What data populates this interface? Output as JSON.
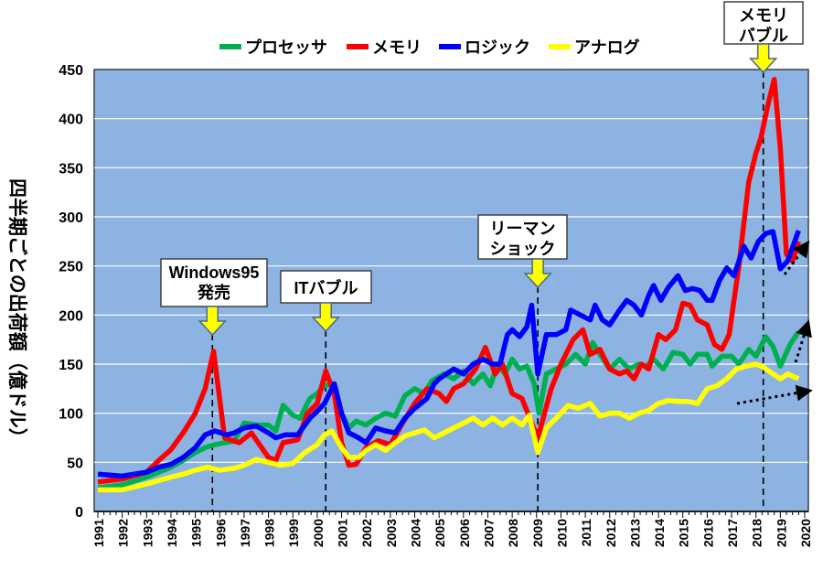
{
  "chart_data": {
    "type": "line",
    "title": "",
    "xlabel": "",
    "ylabel": "四半期ごとの出荷額（億ドル）",
    "ylim": [
      0,
      450
    ],
    "yticks": [
      0,
      50,
      100,
      150,
      200,
      250,
      300,
      350,
      400,
      450
    ],
    "xlim": [
      1991,
      2020
    ],
    "xticks": [
      "1991",
      "1992",
      "1993",
      "1994",
      "1995",
      "1996",
      "1997",
      "1998",
      "1999",
      "2000",
      "2001",
      "2002",
      "2003",
      "2004",
      "2005",
      "2006",
      "2007",
      "2008",
      "2009",
      "2010",
      "2011",
      "2012",
      "2013",
      "2014",
      "2015",
      "2016",
      "2017",
      "2018",
      "2019",
      "2020"
    ],
    "grid": true,
    "legend_position": "top",
    "series": [
      {
        "name": "プロセッサ",
        "color": "#00b050",
        "points": [
          [
            1991,
            24
          ],
          [
            1992,
            27
          ],
          [
            1993,
            35
          ],
          [
            1994,
            45
          ],
          [
            1994.5,
            52
          ],
          [
            1995,
            60
          ],
          [
            1995.4,
            65
          ],
          [
            1995.8,
            68
          ],
          [
            1996.2,
            70
          ],
          [
            1996.6,
            72
          ],
          [
            1997,
            90
          ],
          [
            1997.5,
            88
          ],
          [
            1998,
            88
          ],
          [
            1998.3,
            82
          ],
          [
            1998.6,
            108
          ],
          [
            1999,
            98
          ],
          [
            1999.3,
            95
          ],
          [
            1999.7,
            115
          ],
          [
            2000,
            120
          ],
          [
            2000.3,
            128
          ],
          [
            2000.6,
            130
          ],
          [
            2001,
            100
          ],
          [
            2001.3,
            85
          ],
          [
            2001.6,
            92
          ],
          [
            2002,
            88
          ],
          [
            2002.4,
            95
          ],
          [
            2002.8,
            100
          ],
          [
            2003.2,
            97
          ],
          [
            2003.6,
            118
          ],
          [
            2004,
            125
          ],
          [
            2004.4,
            120
          ],
          [
            2004.7,
            133
          ],
          [
            2005.2,
            140
          ],
          [
            2005.6,
            135
          ],
          [
            2006,
            143
          ],
          [
            2006.4,
            130
          ],
          [
            2006.8,
            140
          ],
          [
            2007.1,
            128
          ],
          [
            2007.4,
            150
          ],
          [
            2007.7,
            140
          ],
          [
            2008,
            155
          ],
          [
            2008.3,
            145
          ],
          [
            2008.6,
            148
          ],
          [
            2008.9,
            130
          ],
          [
            2009.1,
            100
          ],
          [
            2009.4,
            140
          ],
          [
            2009.8,
            145
          ],
          [
            2010.2,
            150
          ],
          [
            2010.6,
            160
          ],
          [
            2011,
            150
          ],
          [
            2011.3,
            172
          ],
          [
            2011.6,
            160
          ],
          [
            2012,
            145
          ],
          [
            2012.4,
            155
          ],
          [
            2012.8,
            145
          ],
          [
            2013.2,
            150
          ],
          [
            2013.5,
            148
          ],
          [
            2013.8,
            155
          ],
          [
            2014.2,
            145
          ],
          [
            2014.6,
            162
          ],
          [
            2015,
            160
          ],
          [
            2015.3,
            150
          ],
          [
            2015.6,
            160
          ],
          [
            2016,
            160
          ],
          [
            2016.2,
            148
          ],
          [
            2016.6,
            158
          ],
          [
            2017,
            158
          ],
          [
            2017.3,
            150
          ],
          [
            2017.7,
            165
          ],
          [
            2018,
            158
          ],
          [
            2018.4,
            178
          ],
          [
            2018.7,
            168
          ],
          [
            2019,
            148
          ],
          [
            2019.4,
            170
          ],
          [
            2019.75,
            183
          ]
        ]
      },
      {
        "name": "メモリ",
        "color": "#ff0000",
        "points": [
          [
            1991,
            30
          ],
          [
            1992,
            33
          ],
          [
            1993,
            40
          ],
          [
            1993.5,
            52
          ],
          [
            1994,
            63
          ],
          [
            1994.5,
            80
          ],
          [
            1995,
            100
          ],
          [
            1995.4,
            125
          ],
          [
            1995.75,
            163
          ],
          [
            1996.2,
            75
          ],
          [
            1996.8,
            70
          ],
          [
            1997.3,
            80
          ],
          [
            1998,
            55
          ],
          [
            1998.3,
            52
          ],
          [
            1998.6,
            70
          ],
          [
            1999.2,
            73
          ],
          [
            1999.6,
            100
          ],
          [
            2000,
            110
          ],
          [
            2000.35,
            143
          ],
          [
            2000.7,
            120
          ],
          [
            2001,
            70
          ],
          [
            2001.3,
            47
          ],
          [
            2001.6,
            48
          ],
          [
            2002,
            65
          ],
          [
            2002.5,
            72
          ],
          [
            2003,
            68
          ],
          [
            2003.5,
            90
          ],
          [
            2004,
            110
          ],
          [
            2004.5,
            125
          ],
          [
            2005,
            120
          ],
          [
            2005.3,
            112
          ],
          [
            2005.6,
            125
          ],
          [
            2006,
            130
          ],
          [
            2006.5,
            145
          ],
          [
            2006.9,
            167
          ],
          [
            2007.3,
            140
          ],
          [
            2007.6,
            150
          ],
          [
            2008,
            120
          ],
          [
            2008.4,
            115
          ],
          [
            2008.8,
            90
          ],
          [
            2009.05,
            75
          ],
          [
            2009.6,
            125
          ],
          [
            2010,
            150
          ],
          [
            2010.5,
            175
          ],
          [
            2010.9,
            185
          ],
          [
            2011.2,
            160
          ],
          [
            2011.6,
            165
          ],
          [
            2012,
            145
          ],
          [
            2012.4,
            140
          ],
          [
            2012.7,
            143
          ],
          [
            2013,
            135
          ],
          [
            2013.3,
            150
          ],
          [
            2013.6,
            145
          ],
          [
            2014,
            180
          ],
          [
            2014.3,
            175
          ],
          [
            2014.7,
            185
          ],
          [
            2015,
            212
          ],
          [
            2015.3,
            210
          ],
          [
            2015.6,
            195
          ],
          [
            2016,
            190
          ],
          [
            2016.3,
            170
          ],
          [
            2016.6,
            165
          ],
          [
            2016.9,
            180
          ],
          [
            2017.3,
            250
          ],
          [
            2017.7,
            335
          ],
          [
            2018,
            365
          ],
          [
            2018.2,
            380
          ],
          [
            2018.5,
            415
          ],
          [
            2018.75,
            440
          ],
          [
            2019,
            370
          ],
          [
            2019.25,
            262
          ],
          [
            2019.5,
            255
          ],
          [
            2019.75,
            275
          ]
        ]
      },
      {
        "name": "ロジック",
        "color": "#0000ff",
        "points": [
          [
            1991,
            38
          ],
          [
            1992,
            36
          ],
          [
            1993,
            40
          ],
          [
            1993.5,
            45
          ],
          [
            1994,
            48
          ],
          [
            1994.5,
            55
          ],
          [
            1995,
            65
          ],
          [
            1995.4,
            78
          ],
          [
            1995.8,
            82
          ],
          [
            1996.3,
            78
          ],
          [
            1996.6,
            80
          ],
          [
            1997,
            85
          ],
          [
            1997.5,
            87
          ],
          [
            1998,
            80
          ],
          [
            1998.3,
            75
          ],
          [
            1998.7,
            78
          ],
          [
            1999.2,
            78
          ],
          [
            1999.7,
            95
          ],
          [
            2000,
            102
          ],
          [
            2000.3,
            110
          ],
          [
            2000.7,
            130
          ],
          [
            2001,
            100
          ],
          [
            2001.3,
            80
          ],
          [
            2001.7,
            75
          ],
          [
            2002,
            70
          ],
          [
            2002.4,
            85
          ],
          [
            2002.8,
            82
          ],
          [
            2003.2,
            80
          ],
          [
            2003.6,
            95
          ],
          [
            2004,
            105
          ],
          [
            2004.5,
            115
          ],
          [
            2004.8,
            130
          ],
          [
            2005,
            135
          ],
          [
            2005.3,
            140
          ],
          [
            2005.6,
            145
          ],
          [
            2006,
            140
          ],
          [
            2006.4,
            150
          ],
          [
            2006.8,
            155
          ],
          [
            2007.2,
            150
          ],
          [
            2007.5,
            150
          ],
          [
            2007.8,
            180
          ],
          [
            2008,
            185
          ],
          [
            2008.3,
            178
          ],
          [
            2008.6,
            188
          ],
          [
            2008.8,
            210
          ],
          [
            2009.05,
            140
          ],
          [
            2009.4,
            180
          ],
          [
            2009.8,
            180
          ],
          [
            2010.2,
            185
          ],
          [
            2010.4,
            205
          ],
          [
            2010.8,
            200
          ],
          [
            2011.2,
            195
          ],
          [
            2011.4,
            210
          ],
          [
            2011.7,
            195
          ],
          [
            2012,
            190
          ],
          [
            2012.4,
            205
          ],
          [
            2012.7,
            215
          ],
          [
            2013,
            210
          ],
          [
            2013.3,
            200
          ],
          [
            2013.6,
            220
          ],
          [
            2013.8,
            230
          ],
          [
            2014.1,
            215
          ],
          [
            2014.4,
            228
          ],
          [
            2014.8,
            240
          ],
          [
            2015.1,
            225
          ],
          [
            2015.4,
            227
          ],
          [
            2015.7,
            225
          ],
          [
            2016,
            215
          ],
          [
            2016.2,
            215
          ],
          [
            2016.5,
            235
          ],
          [
            2016.8,
            248
          ],
          [
            2017.1,
            240
          ],
          [
            2017.5,
            270
          ],
          [
            2017.8,
            258
          ],
          [
            2018.1,
            275
          ],
          [
            2018.4,
            283
          ],
          [
            2018.7,
            285
          ],
          [
            2019,
            247
          ],
          [
            2019.3,
            255
          ],
          [
            2019.75,
            286
          ]
        ]
      },
      {
        "name": "アナログ",
        "color": "#ffff00",
        "points": [
          [
            1991,
            22
          ],
          [
            1992,
            22
          ],
          [
            1993,
            28
          ],
          [
            1994,
            35
          ],
          [
            1994.5,
            38
          ],
          [
            1995,
            42
          ],
          [
            1995.5,
            45
          ],
          [
            1996,
            42
          ],
          [
            1996.6,
            44
          ],
          [
            1997,
            47
          ],
          [
            1997.5,
            53
          ],
          [
            1998,
            50
          ],
          [
            1998.5,
            47
          ],
          [
            1999,
            49
          ],
          [
            1999.5,
            60
          ],
          [
            2000,
            68
          ],
          [
            2000.3,
            78
          ],
          [
            2000.6,
            82
          ],
          [
            2001,
            65
          ],
          [
            2001.3,
            55
          ],
          [
            2001.7,
            55
          ],
          [
            2002,
            62
          ],
          [
            2002.4,
            68
          ],
          [
            2002.8,
            62
          ],
          [
            2003.2,
            70
          ],
          [
            2003.6,
            77
          ],
          [
            2004,
            80
          ],
          [
            2004.4,
            83
          ],
          [
            2004.8,
            75
          ],
          [
            2005.2,
            80
          ],
          [
            2005.6,
            85
          ],
          [
            2006,
            90
          ],
          [
            2006.4,
            95
          ],
          [
            2006.8,
            88
          ],
          [
            2007.2,
            95
          ],
          [
            2007.6,
            88
          ],
          [
            2008,
            95
          ],
          [
            2008.4,
            88
          ],
          [
            2008.7,
            98
          ],
          [
            2009.05,
            60
          ],
          [
            2009.4,
            85
          ],
          [
            2009.8,
            95
          ],
          [
            2010.3,
            108
          ],
          [
            2010.7,
            105
          ],
          [
            2011.2,
            110
          ],
          [
            2011.6,
            97
          ],
          [
            2012,
            100
          ],
          [
            2012.4,
            100
          ],
          [
            2012.8,
            95
          ],
          [
            2013.2,
            100
          ],
          [
            2013.6,
            103
          ],
          [
            2014,
            110
          ],
          [
            2014.4,
            113
          ],
          [
            2014.8,
            112
          ],
          [
            2015.2,
            112
          ],
          [
            2015.6,
            110
          ],
          [
            2016,
            125
          ],
          [
            2016.4,
            128
          ],
          [
            2016.8,
            135
          ],
          [
            2017.2,
            145
          ],
          [
            2017.6,
            148
          ],
          [
            2018,
            150
          ],
          [
            2018.3,
            147
          ],
          [
            2018.7,
            140
          ],
          [
            2019,
            135
          ],
          [
            2019.3,
            140
          ],
          [
            2019.75,
            135
          ]
        ]
      }
    ],
    "annotations": [
      {
        "lines": [
          "Windows95",
          "発売"
        ],
        "x": 1995.7
      },
      {
        "lines": [
          "ITバブル"
        ],
        "x": 2000.35
      },
      {
        "lines": [
          "リーマン",
          "ショック"
        ],
        "x": 2009.05
      },
      {
        "lines": [
          "メモリ",
          "バブル"
        ],
        "x": 2018.3
      }
    ]
  }
}
